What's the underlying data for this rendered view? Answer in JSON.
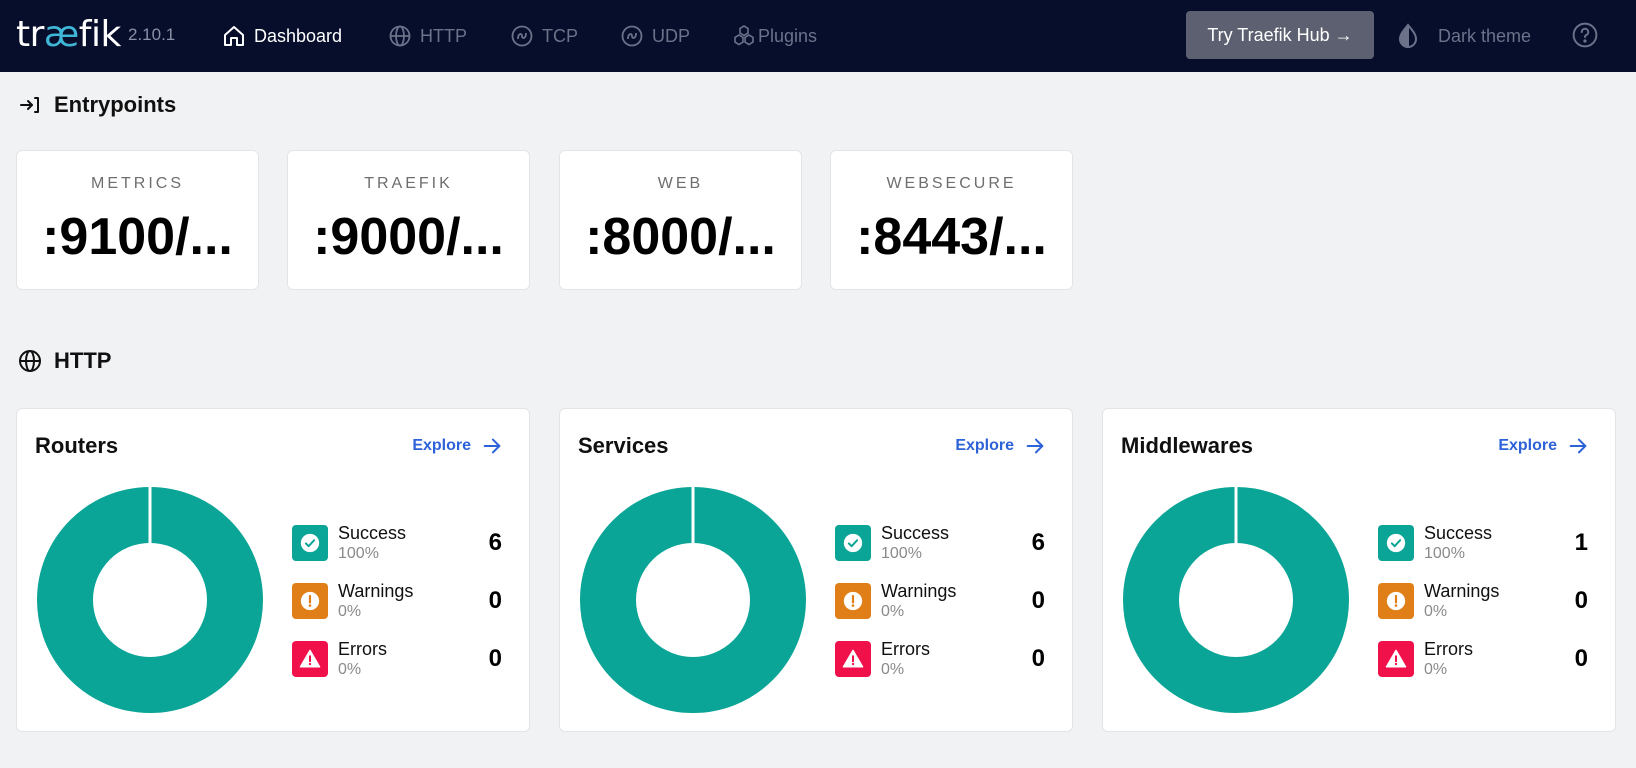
{
  "header": {
    "logo_prefix": "tr",
    "logo_ae": "æ",
    "logo_suffix": "fik",
    "version": "2.10.1",
    "nav": [
      {
        "label": "Dashboard",
        "icon": "home-icon",
        "active": true
      },
      {
        "label": "HTTP",
        "icon": "globe-icon",
        "active": false
      },
      {
        "label": "TCP",
        "icon": "tcp-icon",
        "active": false
      },
      {
        "label": "UDP",
        "icon": "udp-icon",
        "active": false
      },
      {
        "label": "Plugins",
        "icon": "plugins-icon",
        "active": false
      }
    ],
    "hub_button": "Try Traefik Hub →",
    "theme_label": "Dark theme"
  },
  "entrypoints": {
    "title": "Entrypoints",
    "items": [
      {
        "name": "METRICS",
        "address": ":9100/..."
      },
      {
        "name": "TRAEFIK",
        "address": ":9000/..."
      },
      {
        "name": "WEB",
        "address": ":8000/..."
      },
      {
        "name": "WEBSECURE",
        "address": ":8443/..."
      }
    ]
  },
  "http": {
    "title": "HTTP",
    "explore_label": "Explore",
    "cards": [
      {
        "title": "Routers",
        "success": {
          "label": "Success",
          "pct": "100%",
          "count": "6"
        },
        "warnings": {
          "label": "Warnings",
          "pct": "0%",
          "count": "0"
        },
        "errors": {
          "label": "Errors",
          "pct": "0%",
          "count": "0"
        }
      },
      {
        "title": "Services",
        "success": {
          "label": "Success",
          "pct": "100%",
          "count": "6"
        },
        "warnings": {
          "label": "Warnings",
          "pct": "0%",
          "count": "0"
        },
        "errors": {
          "label": "Errors",
          "pct": "0%",
          "count": "0"
        }
      },
      {
        "title": "Middlewares",
        "success": {
          "label": "Success",
          "pct": "100%",
          "count": "1"
        },
        "warnings": {
          "label": "Warnings",
          "pct": "0%",
          "count": "0"
        },
        "errors": {
          "label": "Errors",
          "pct": "0%",
          "count": "0"
        }
      }
    ]
  },
  "colors": {
    "header_bg": "#060e2b",
    "success": "#0aa596",
    "warning": "#e07f17",
    "error": "#f0104a",
    "link": "#2e62d9"
  }
}
